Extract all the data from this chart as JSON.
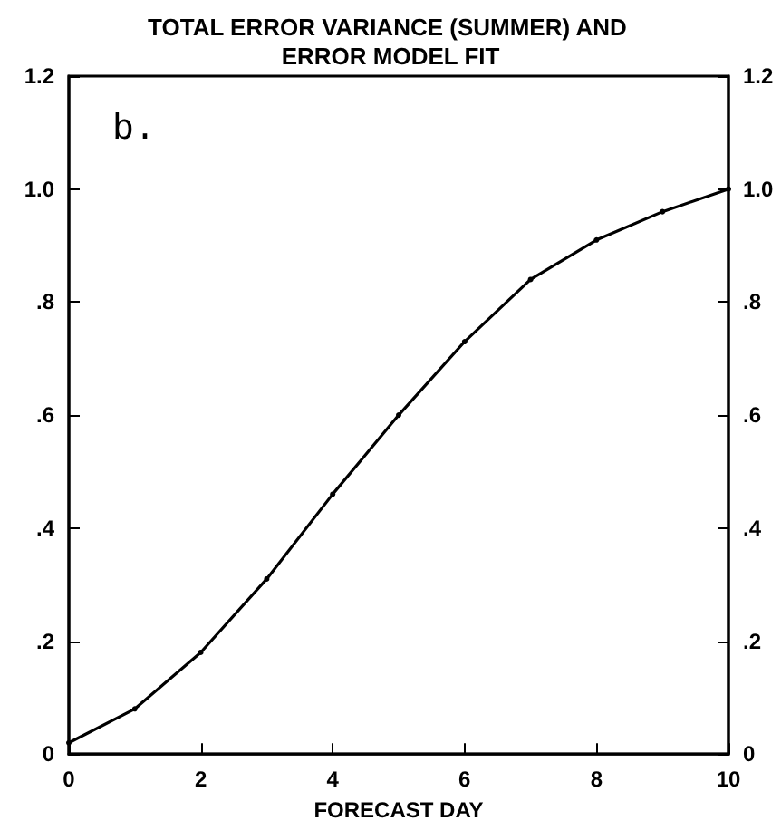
{
  "chart_data": {
    "type": "line",
    "title": "TOTAL ERROR VARIANCE (SUMMER) AND ERROR MODEL FIT",
    "xlabel": "FORECAST DAY",
    "annotations": [
      "b."
    ],
    "x": [
      0,
      1,
      2,
      3,
      4,
      5,
      6,
      7,
      8,
      9,
      10
    ],
    "series": [
      {
        "color": "#000000",
        "values": [
          0.02,
          0.08,
          0.18,
          0.31,
          0.46,
          0.6,
          0.73,
          0.84,
          0.91,
          0.96,
          1.0
        ]
      }
    ],
    "xlim": [
      0,
      10
    ],
    "xticks": [
      0,
      2,
      4,
      6,
      8,
      10
    ],
    "ylim": [
      0,
      1.2
    ],
    "yticks": [
      0,
      {
        "value": 0.2,
        "label": ".2"
      },
      {
        "value": 0.4,
        "label": ".4"
      },
      {
        "value": 0.6,
        "label": ".6"
      },
      {
        "value": 0.8,
        "label": ".8"
      },
      {
        "value": 1.0,
        "label": "1.0"
      },
      {
        "value": 1.2,
        "label": "1.2"
      }
    ],
    "y2lim": [
      0,
      1.2
    ],
    "y2ticks": [
      0,
      {
        "value": 0.2,
        "label": ".2"
      },
      {
        "value": 0.4,
        "label": ".4"
      },
      {
        "value": 0.6,
        "label": ".6"
      },
      {
        "value": 0.8,
        "label": ".8"
      },
      {
        "value": 1.0,
        "label": "1.0"
      },
      {
        "value": 1.2,
        "label": "1.2"
      }
    ],
    "grid": false,
    "marker": "circle",
    "line_style": "solid"
  }
}
